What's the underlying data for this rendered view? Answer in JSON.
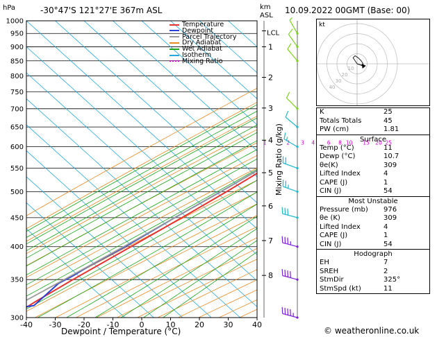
{
  "header": {
    "location": "-30°47'S  121°27'E  367m  ASL",
    "datetime": "10.09.2022  00GMT  (Base: 00)",
    "hpa_unit": "hPa",
    "km_unit": "km",
    "asl_unit": "ASL"
  },
  "footer": {
    "copyright": "© weatheronline.co.uk"
  },
  "chart_data": {
    "type": "line",
    "subtype": "skew-T log-P",
    "xlabel": "Dewpoint / Temperature (°C)",
    "ylabel": "Mixing Ratio (g/kg)",
    "x_ticks": [
      -40,
      -30,
      -20,
      -10,
      0,
      10,
      20,
      30,
      40
    ],
    "xlim": [
      -40,
      40
    ],
    "ylim_hpa": [
      1000,
      300
    ],
    "pressure_levels": [
      300,
      350,
      400,
      450,
      500,
      550,
      600,
      650,
      700,
      750,
      800,
      850,
      900,
      950,
      1000
    ],
    "km_ticks": [
      {
        "label": "8",
        "p": 356
      },
      {
        "label": "7",
        "p": 410
      },
      {
        "label": "6",
        "p": 472
      },
      {
        "label": "5",
        "p": 540
      },
      {
        "label": "4",
        "p": 616
      },
      {
        "label": "3",
        "p": 702
      },
      {
        "label": "2",
        "p": 795
      },
      {
        "label": "1",
        "p": 900
      }
    ],
    "lcl": {
      "label": "LCL",
      "p": 960
    },
    "mixing_ratio_labels": [
      "1",
      "2",
      "3",
      "4",
      "6",
      "8",
      "10",
      "15",
      "20",
      "25"
    ],
    "mixing_ratios": [
      1,
      2,
      3,
      4,
      6,
      8,
      10,
      15,
      20,
      25
    ],
    "legend": [
      {
        "name": "Temperature",
        "color": "#e8322d",
        "style": "solid"
      },
      {
        "name": "Dewpoint",
        "color": "#2a3fd6",
        "style": "solid"
      },
      {
        "name": "Parcel Trajectory",
        "color": "#9a9a9a",
        "style": "solid"
      },
      {
        "name": "Dry Adiabat",
        "color": "#e88a22",
        "style": "solid"
      },
      {
        "name": "Wet Adiabat",
        "color": "#1aa51a",
        "style": "solid"
      },
      {
        "name": "Isotherm",
        "color": "#23a8e0",
        "style": "solid"
      },
      {
        "name": "Mixing Ratio",
        "color": "#cc00cc",
        "style": "dotted"
      }
    ],
    "series": [
      {
        "name": "Temperature",
        "color": "#e8322d",
        "points": [
          [
            1000,
            11
          ],
          [
            975,
            11.2
          ],
          [
            950,
            10
          ],
          [
            925,
            9.5
          ],
          [
            900,
            7.5
          ],
          [
            850,
            4.5
          ],
          [
            800,
            1.8
          ],
          [
            750,
            -0.5
          ],
          [
            700,
            -3.5
          ],
          [
            650,
            -6.8
          ],
          [
            600,
            -10
          ],
          [
            550,
            -14.5
          ],
          [
            500,
            -19
          ],
          [
            450,
            -24.5
          ],
          [
            400,
            -31
          ],
          [
            350,
            -38.5
          ],
          [
            320,
            -43
          ],
          [
            305,
            -45
          ]
        ]
      },
      {
        "name": "Dewpoint",
        "color": "#2a3fd6",
        "points": [
          [
            1000,
            10.7
          ],
          [
            975,
            10.5
          ],
          [
            950,
            8.5
          ],
          [
            930,
            4
          ],
          [
            910,
            3
          ],
          [
            850,
            2.5
          ],
          [
            800,
            1.3
          ],
          [
            750,
            -1
          ],
          [
            700,
            -4.2
          ],
          [
            650,
            -7.5
          ],
          [
            600,
            -11
          ],
          [
            550,
            -16
          ],
          [
            500,
            -21
          ],
          [
            450,
            -27
          ],
          [
            400,
            -33
          ],
          [
            370,
            -38
          ],
          [
            355,
            -40
          ],
          [
            345,
            -42
          ],
          [
            338,
            -42
          ],
          [
            328,
            -42
          ],
          [
            315,
            -42
          ],
          [
            305,
            -59
          ],
          [
            300,
            -60
          ]
        ]
      },
      {
        "name": "Parcel Trajectory",
        "color": "#9a9a9a",
        "points": [
          [
            1000,
            11
          ],
          [
            950,
            9.5
          ],
          [
            900,
            7
          ],
          [
            850,
            4.3
          ],
          [
            800,
            1.5
          ],
          [
            750,
            -1.3
          ],
          [
            700,
            -4.5
          ],
          [
            650,
            -8
          ],
          [
            600,
            -11.8
          ],
          [
            550,
            -16
          ],
          [
            500,
            -21
          ],
          [
            450,
            -27
          ],
          [
            400,
            -33.5
          ],
          [
            350,
            -41.5
          ],
          [
            300,
            -51
          ]
        ]
      }
    ],
    "wind_barbs_color": "#23b5c9",
    "wind_barbs_upper_color": "#7a1fd4",
    "wind_barbs_lower_color": "#7bd21a",
    "wind_barbs": [
      {
        "p": 300,
        "spd": 45,
        "dir": 285
      },
      {
        "p": 350,
        "spd": 40,
        "dir": 285
      },
      {
        "p": 400,
        "spd": 35,
        "dir": 285
      },
      {
        "p": 450,
        "spd": 30,
        "dir": 285
      },
      {
        "p": 500,
        "spd": 25,
        "dir": 290
      },
      {
        "p": 550,
        "spd": 20,
        "dir": 290
      },
      {
        "p": 600,
        "spd": 15,
        "dir": 300
      },
      {
        "p": 650,
        "spd": 10,
        "dir": 310
      },
      {
        "p": 700,
        "spd": 10,
        "dir": 315
      },
      {
        "p": 850,
        "spd": 10,
        "dir": 320
      },
      {
        "p": 900,
        "spd": 10,
        "dir": 325
      },
      {
        "p": 950,
        "spd": 5,
        "dir": 330
      }
    ]
  },
  "hodograph": {
    "unit_label": "kt",
    "ring_labels": [
      "10",
      "20",
      "30",
      "40"
    ],
    "line_color": "#222222",
    "trace_kt": [
      [
        0,
        0
      ],
      [
        -2,
        3
      ],
      [
        -4,
        6
      ],
      [
        -2,
        8
      ],
      [
        1,
        6
      ],
      [
        4,
        3
      ],
      [
        6,
        0
      ],
      [
        4,
        -2
      ]
    ],
    "storm_motion_kt": [
      6,
      -2
    ]
  },
  "indices": [
    {
      "label": "K",
      "value": "25"
    },
    {
      "label": "Totals Totals",
      "value": "45"
    },
    {
      "label": "PW (cm)",
      "value": "1.81"
    }
  ],
  "surface": {
    "title": "Surface",
    "rows": [
      {
        "label": "Temp (°C)",
        "value": "11"
      },
      {
        "label": "Dewp (°C)",
        "value": "10.7"
      },
      {
        "label": "θe(K)",
        "value": "309"
      },
      {
        "label": "Lifted Index",
        "value": "4"
      },
      {
        "label": "CAPE (J)",
        "value": "1"
      },
      {
        "label": "CIN (J)",
        "value": "54"
      }
    ]
  },
  "most_unstable": {
    "title": "Most Unstable",
    "rows": [
      {
        "label": "Pressure (mb)",
        "value": "976"
      },
      {
        "label": "θe (K)",
        "value": "309"
      },
      {
        "label": "Lifted Index",
        "value": "4"
      },
      {
        "label": "CAPE (J)",
        "value": "1"
      },
      {
        "label": "CIN (J)",
        "value": "54"
      }
    ]
  },
  "hodograph_table": {
    "title": "Hodograph",
    "rows": [
      {
        "label": "EH",
        "value": "7"
      },
      {
        "label": "SREH",
        "value": "2"
      },
      {
        "label": "StmDir",
        "value": "325°"
      },
      {
        "label": "StmSpd (kt)",
        "value": "11"
      }
    ]
  }
}
